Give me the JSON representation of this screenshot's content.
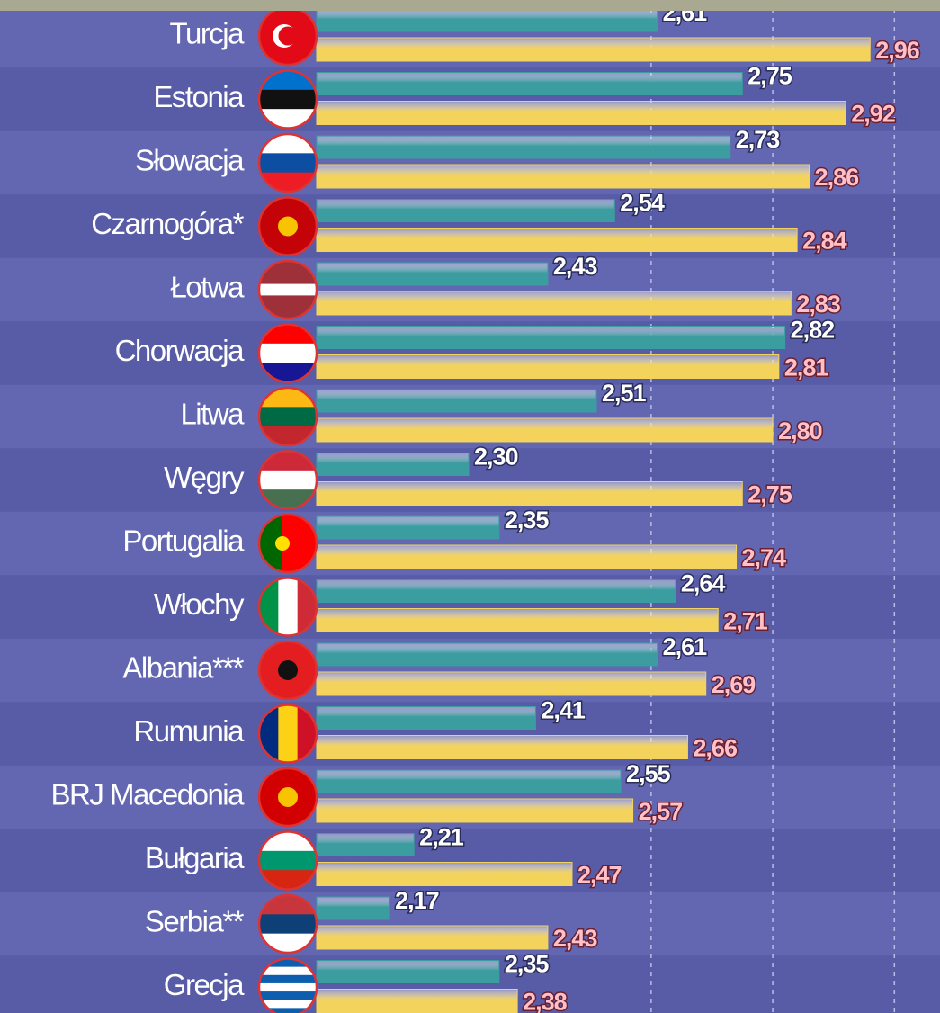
{
  "chart_data": {
    "type": "bar",
    "orientation": "horizontal",
    "categories": [
      "Turcja",
      "Estonia",
      "Słowacja",
      "Czarnogóra*",
      "Łotwa",
      "Chorwacja",
      "Litwa",
      "Węgry",
      "Portugalia",
      "Włochy",
      "Albania***",
      "Rumunia",
      "BRJ Macedonia",
      "Bułgaria",
      "Serbia**",
      "Grecja"
    ],
    "series": [
      {
        "color": "#3b9d9f",
        "values": [
          2.61,
          2.75,
          2.73,
          2.54,
          2.43,
          2.82,
          2.51,
          2.3,
          2.35,
          2.64,
          2.61,
          2.41,
          2.55,
          2.21,
          2.17,
          2.35
        ],
        "value_labels": [
          "2,61",
          "2,75",
          "2,73",
          "2,54",
          "2,43",
          "2,82",
          "2,51",
          "2,30",
          "2,35",
          "2,64",
          "2,61",
          "2,41",
          "2,55",
          "2,21",
          "2,17",
          "2,35"
        ]
      },
      {
        "color": "#f4d35c",
        "values": [
          2.96,
          2.92,
          2.86,
          2.84,
          2.83,
          2.81,
          2.8,
          2.75,
          2.74,
          2.71,
          2.69,
          2.66,
          2.57,
          2.47,
          2.43,
          2.38
        ],
        "value_labels": [
          "2,96",
          "2,92",
          "2,86",
          "2,84",
          "2,83",
          "2,81",
          "2,80",
          "2,75",
          "2,74",
          "2,71",
          "2,69",
          "2,66",
          "2,57",
          "2,47",
          "2,43",
          "2,38"
        ]
      }
    ],
    "xlim": [
      2.05,
      3.075
    ],
    "xticks": [
      2.6,
      2.8,
      3.0
    ],
    "grid": true
  }
}
